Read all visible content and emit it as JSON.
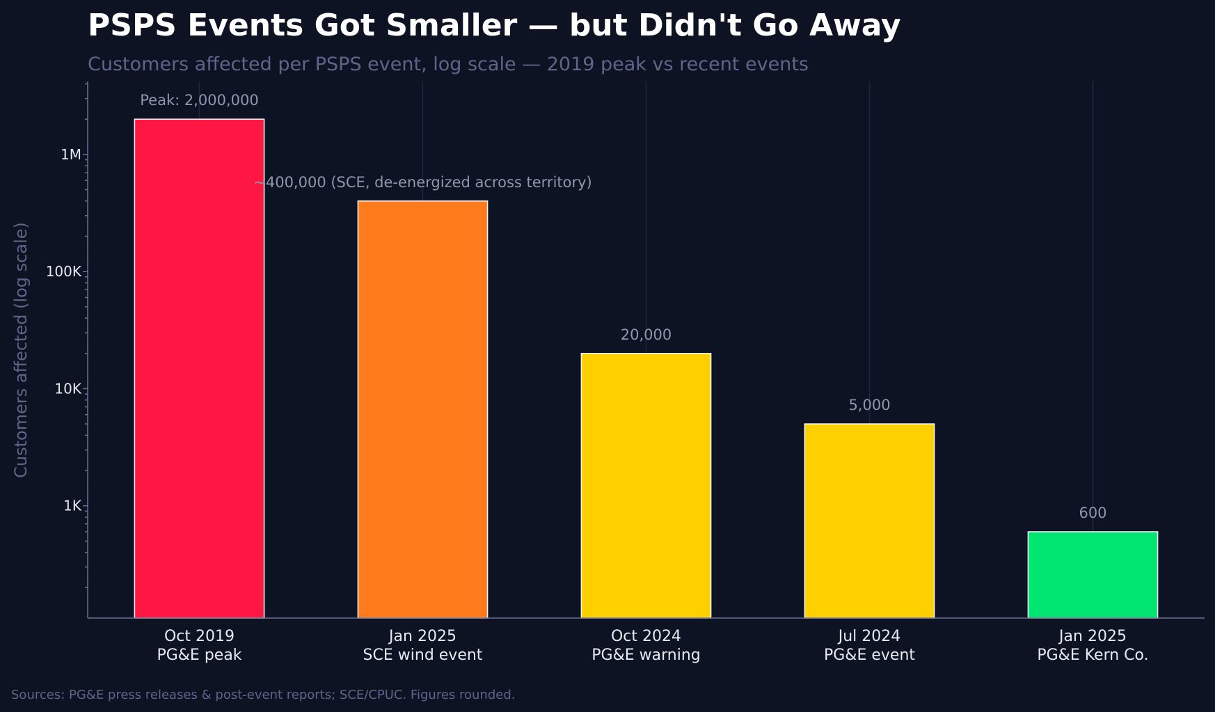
{
  "chart_data": {
    "type": "bar",
    "title": "PSPS Events Got Smaller — but Didn't Go Away",
    "subtitle": "Customers affected per PSPS event, log scale — 2019 peak vs recent events",
    "ylabel": "Customers affected (log scale)",
    "xlabel": "",
    "yscale": "log",
    "ylim": [
      110,
      4200000
    ],
    "grid": "vertical",
    "yticks": [
      {
        "value": 1000,
        "label": "1K"
      },
      {
        "value": 10000,
        "label": "10K"
      },
      {
        "value": 100000,
        "label": "100K"
      },
      {
        "value": 1000000,
        "label": "1M"
      }
    ],
    "categories": [
      {
        "line1": "Oct 2019",
        "line2": "PG&E peak"
      },
      {
        "line1": "Jan 2025",
        "line2": "SCE wind event"
      },
      {
        "line1": "Oct 2024",
        "line2": "PG&E warning"
      },
      {
        "line1": "Jul 2024",
        "line2": "PG&E event"
      },
      {
        "line1": "Jan 2025",
        "line2": "PG&E Kern Co."
      }
    ],
    "values": [
      2000000,
      400000,
      20000,
      5000,
      600
    ],
    "colors": [
      "#ff1744",
      "#ff7b1c",
      "#ffd000",
      "#ffd000",
      "#00e472"
    ],
    "labels": [
      "Peak: 2,000,000",
      "~400,000 (SCE, de-energized across territory)",
      "20,000",
      "5,000",
      "600"
    ],
    "source": "Sources: PG&E press releases & post-event reports; SCE/CPUC. Figures rounded."
  }
}
